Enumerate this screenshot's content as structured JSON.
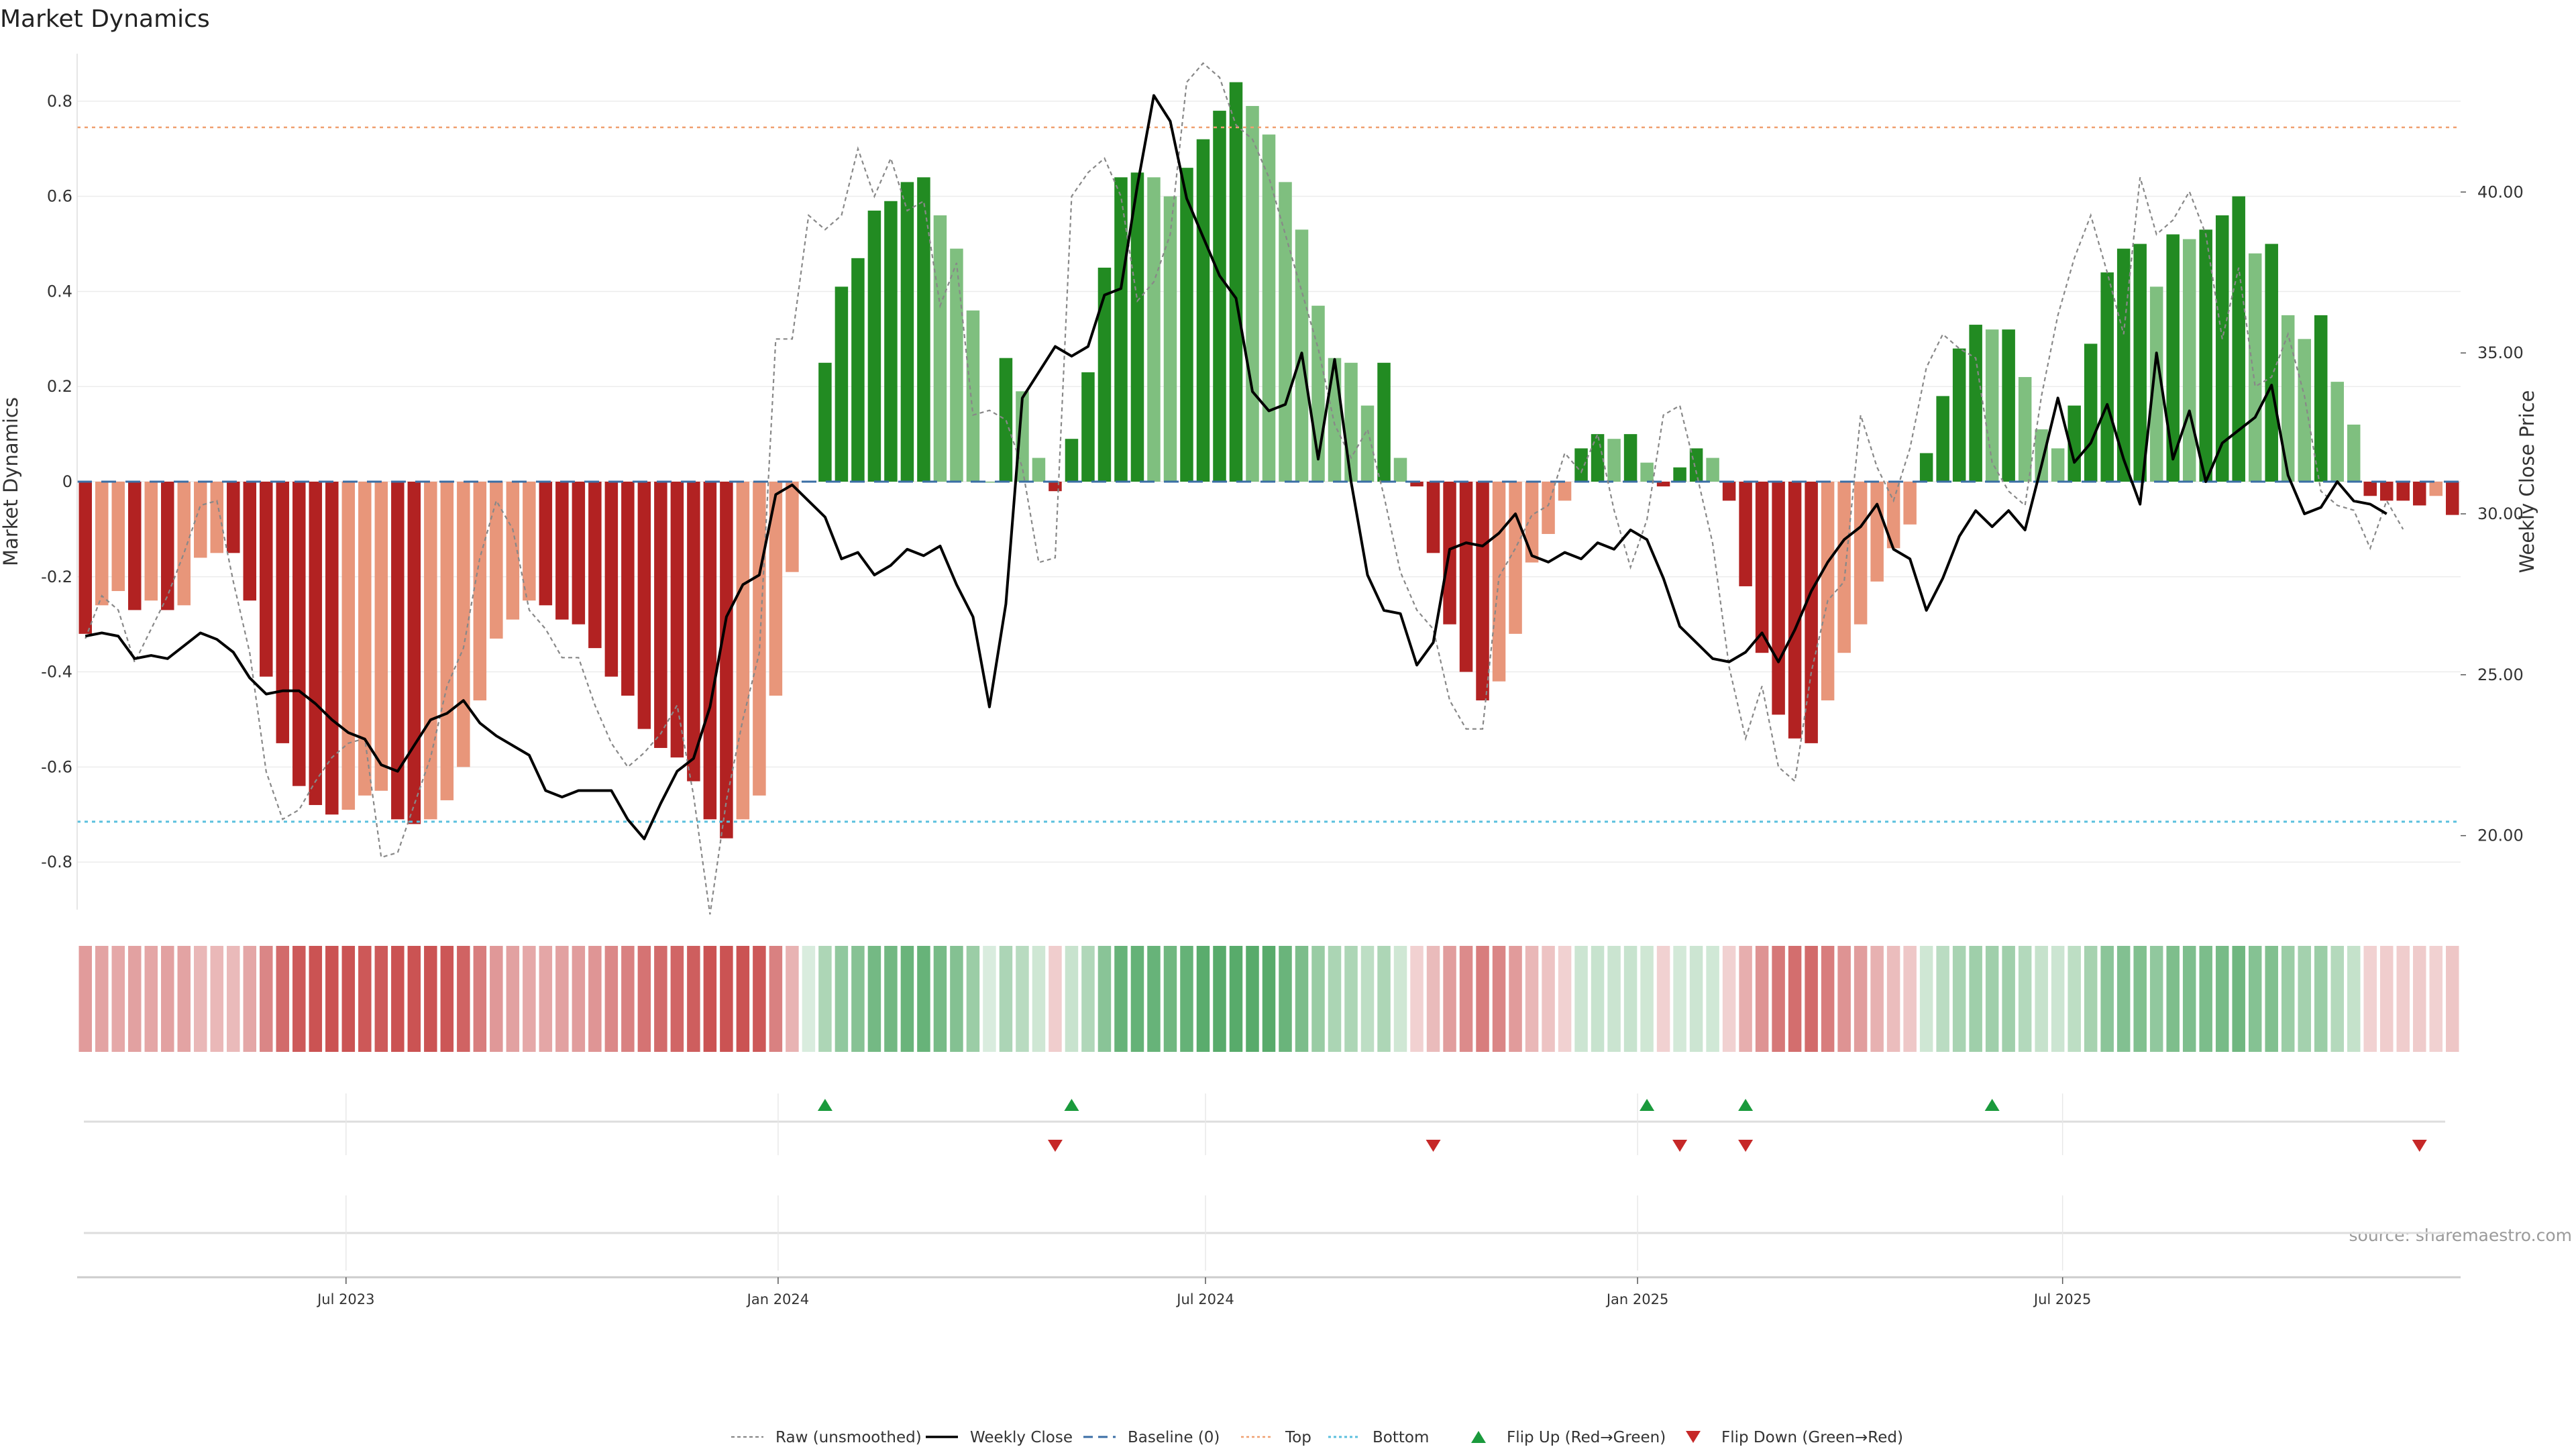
{
  "title": "Market Dynamics",
  "source": "source: sharemaestro.com",
  "colors": {
    "strong_green": "#228b22",
    "light_green": "#7fbf7f",
    "strong_red": "#b22222",
    "light_red": "#e8967a",
    "raw": "#888888",
    "close": "#000000",
    "baseline": "#3a6ea5",
    "top": "#f0a070",
    "bottom": "#5bc0de",
    "flip_up": "#1a9a3c",
    "flip_down": "#c62828"
  },
  "chart_data": {
    "type": "bar",
    "x_start": "2023-03-12",
    "x_step_days": 7,
    "x_tick_labels": [
      "Jul 2023",
      "Jan 2024",
      "Jul 2024",
      "Jan 2025",
      "Jul 2025"
    ],
    "x_tick_dates": [
      "2023-07-01",
      "2024-01-01",
      "2024-07-01",
      "2025-01-01",
      "2025-07-01"
    ],
    "ylabel": "Market Dynamics",
    "ylim": [
      -0.9,
      0.9
    ],
    "yticks": [
      -0.8,
      -0.6,
      -0.4,
      -0.2,
      0,
      0.2,
      0.4,
      0.6,
      0.8
    ],
    "y2label": "Weekly Close Price",
    "y2lim": [
      17.7,
      44.3
    ],
    "y2ticks": [
      20.0,
      25.0,
      30.0,
      35.0,
      40.0
    ],
    "top_threshold": 0.745,
    "bottom_threshold": -0.715,
    "series": [
      {
        "name": "Market Dynamics",
        "values": [
          -0.32,
          -0.26,
          -0.23,
          -0.27,
          -0.25,
          -0.27,
          -0.26,
          -0.16,
          -0.15,
          -0.15,
          -0.25,
          -0.41,
          -0.55,
          -0.64,
          -0.68,
          -0.7,
          -0.69,
          -0.66,
          -0.65,
          -0.71,
          -0.72,
          -0.71,
          -0.67,
          -0.6,
          -0.46,
          -0.33,
          -0.29,
          -0.25,
          -0.26,
          -0.29,
          -0.3,
          -0.35,
          -0.41,
          -0.45,
          -0.52,
          -0.56,
          -0.58,
          -0.63,
          -0.71,
          -0.75,
          -0.71,
          -0.66,
          -0.45,
          -0.19,
          0,
          0.25,
          0.41,
          0.47,
          0.57,
          0.59,
          0.63,
          0.64,
          0.56,
          0.49,
          0.36,
          0,
          0.26,
          0.19,
          0.05,
          -0.02,
          0.09,
          0.23,
          0.45,
          0.64,
          0.65,
          0.64,
          0.6,
          0.66,
          0.72,
          0.78,
          0.84,
          0.79,
          0.73,
          0.63,
          0.53,
          0.37,
          0.26,
          0.25,
          0.16,
          0.25,
          0.05,
          -0.01,
          -0.15,
          -0.3,
          -0.4,
          -0.46,
          -0.42,
          -0.32,
          -0.17,
          -0.11,
          -0.04,
          0.07,
          0.1,
          0.09,
          0.1,
          0.04,
          -0.01,
          0.03,
          0.07,
          0.05,
          -0.04,
          -0.22,
          -0.36,
          -0.49,
          -0.54,
          -0.55,
          -0.46,
          -0.36,
          -0.3,
          -0.21,
          -0.14,
          -0.09,
          0.06,
          0.18,
          0.28,
          0.33,
          0.32,
          0.32,
          0.22,
          0.11,
          0.07,
          0.16,
          0.29,
          0.44,
          0.49,
          0.5,
          0.41,
          0.52,
          0.51,
          0.53,
          0.56,
          0.6,
          0.48,
          0.5,
          0.35,
          0.3,
          0.35,
          0.21,
          0.12,
          -0.03,
          -0.04,
          -0.04,
          -0.05,
          -0.03,
          -0.07
        ]
      },
      {
        "name": "Raw (unsmoothed)",
        "values": [
          -0.33,
          -0.24,
          -0.27,
          -0.38,
          -0.31,
          -0.24,
          -0.15,
          -0.05,
          -0.04,
          -0.21,
          -0.36,
          -0.61,
          -0.71,
          -0.69,
          -0.63,
          -0.58,
          -0.55,
          -0.54,
          -0.79,
          -0.78,
          -0.68,
          -0.58,
          -0.43,
          -0.35,
          -0.16,
          -0.04,
          -0.1,
          -0.27,
          -0.31,
          -0.37,
          -0.37,
          -0.47,
          -0.55,
          -0.6,
          -0.57,
          -0.53,
          -0.47,
          -0.66,
          -0.91,
          -0.67,
          -0.5,
          -0.36,
          0.3,
          0.3,
          0.56,
          0.53,
          0.56,
          0.7,
          0.6,
          0.68,
          0.57,
          0.59,
          0.37,
          0.46,
          0.14,
          0.15,
          0.13,
          0.03,
          -0.17,
          -0.16,
          0.6,
          0.65,
          0.68,
          0.6,
          0.38,
          0.42,
          0.52,
          0.84,
          0.88,
          0.85,
          0.75,
          0.72,
          0.64,
          0.52,
          0.4,
          0.28,
          0.12,
          0.05,
          0.11,
          -0.03,
          -0.19,
          -0.27,
          -0.31,
          -0.46,
          -0.52,
          -0.52,
          -0.2,
          -0.14,
          -0.07,
          -0.05,
          0.06,
          0.02,
          0.1,
          -0.06,
          -0.18,
          -0.08,
          0.14,
          0.16,
          0.02,
          -0.13,
          -0.39,
          -0.54,
          -0.43,
          -0.6,
          -0.63,
          -0.4,
          -0.25,
          -0.21,
          0.14,
          0.03,
          -0.04,
          0.07,
          0.24,
          0.31,
          0.28,
          0.26,
          0.04,
          -0.02,
          -0.05,
          0.18,
          0.35,
          0.47,
          0.56,
          0.44,
          0.31,
          0.64,
          0.52,
          0.55,
          0.61,
          0.52,
          0.3,
          0.45,
          0.2,
          0.22,
          0.31,
          0.18,
          -0.02,
          -0.05,
          -0.06,
          -0.14,
          -0.04,
          -0.1
        ]
      },
      {
        "name": "Weekly Close",
        "values": [
          26.2,
          26.3,
          26.2,
          25.5,
          25.6,
          25.5,
          25.9,
          26.3,
          26.1,
          25.7,
          24.9,
          24.4,
          24.5,
          24.5,
          24.1,
          23.6,
          23.2,
          23.0,
          22.2,
          22.0,
          22.8,
          23.6,
          23.8,
          24.2,
          23.5,
          23.1,
          22.8,
          22.5,
          21.4,
          21.2,
          21.4,
          21.4,
          21.4,
          20.5,
          19.9,
          21.0,
          22.0,
          22.4,
          24.0,
          26.8,
          27.8,
          28.1,
          30.6,
          30.9,
          30.4,
          29.9,
          28.6,
          28.8,
          28.1,
          28.4,
          28.9,
          28.7,
          29.0,
          27.8,
          26.8,
          24.0,
          27.2,
          33.6,
          34.4,
          35.2,
          34.9,
          35.2,
          36.8,
          37.0,
          40.2,
          43.0,
          42.2,
          39.8,
          38.6,
          37.4,
          36.7,
          33.8,
          33.2,
          33.4,
          35.0,
          31.7,
          34.8,
          31.0,
          28.1,
          27.0,
          26.9,
          25.3,
          26.0,
          28.9,
          29.1,
          29.0,
          29.4,
          30.0,
          28.7,
          28.5,
          28.8,
          28.6,
          29.1,
          28.9,
          29.5,
          29.2,
          28.0,
          26.5,
          26.0,
          25.5,
          25.4,
          25.7,
          26.3,
          25.4,
          26.4,
          27.6,
          28.5,
          29.2,
          29.6,
          30.3,
          28.9,
          28.6,
          27.0,
          28.0,
          29.3,
          30.1,
          29.6,
          30.1,
          29.5,
          31.5,
          33.6,
          31.6,
          32.2,
          33.4,
          31.7,
          30.3,
          35.0,
          31.7,
          33.2,
          31.0,
          32.2,
          32.6,
          33.0,
          34.0,
          31.2,
          30.0,
          30.2,
          31.0,
          30.4,
          30.3,
          30.0
        ]
      }
    ],
    "regime_strip": [
      0.46,
      0.4,
      0.36,
      0.42,
      0.38,
      0.42,
      0.4,
      0.25,
      0.24,
      0.23,
      0.38,
      0.62,
      0.82,
      0.95,
      1.0,
      1.0,
      1.0,
      0.96,
      0.95,
      1.0,
      1.0,
      1.0,
      0.98,
      0.88,
      0.68,
      0.48,
      0.42,
      0.36,
      0.38,
      0.42,
      0.44,
      0.51,
      0.6,
      0.66,
      0.76,
      0.82,
      0.86,
      0.92,
      1.0,
      1.0,
      1.0,
      0.96,
      0.65,
      0.28,
      0.0,
      0.34,
      0.56,
      0.64,
      0.78,
      0.8,
      0.86,
      0.88,
      0.76,
      0.66,
      0.48,
      0.0,
      0.35,
      0.26,
      0.08,
      0.08,
      0.13,
      0.32,
      0.62,
      0.88,
      0.9,
      0.88,
      0.82,
      0.9,
      0.98,
      1.0,
      1.0,
      1.0,
      1.0,
      0.86,
      0.72,
      0.5,
      0.36,
      0.34,
      0.22,
      0.34,
      0.08,
      0.06,
      0.22,
      0.44,
      0.58,
      0.68,
      0.62,
      0.46,
      0.25,
      0.16,
      0.06,
      0.1,
      0.14,
      0.12,
      0.14,
      0.08,
      0.06,
      0.05,
      0.1,
      0.07,
      0.06,
      0.32,
      0.52,
      0.72,
      0.8,
      0.82,
      0.68,
      0.52,
      0.44,
      0.3,
      0.2,
      0.13,
      0.08,
      0.24,
      0.38,
      0.45,
      0.44,
      0.44,
      0.3,
      0.15,
      0.1,
      0.22,
      0.4,
      0.6,
      0.67,
      0.68,
      0.56,
      0.71,
      0.7,
      0.72,
      0.76,
      0.82,
      0.65,
      0.68,
      0.48,
      0.41,
      0.48,
      0.29,
      0.16,
      0.06,
      0.08,
      0.08,
      0.1,
      0.06,
      0.14
    ],
    "flip_up_indices": [
      45,
      60,
      95,
      101,
      116
    ],
    "flip_down_indices": [
      59,
      82,
      97,
      101,
      142
    ]
  },
  "legend": {
    "raw": "Raw (unsmoothed)",
    "close": "Weekly Close",
    "baseline": "Baseline (0)",
    "top": "Top",
    "bottom": "Bottom",
    "flip_up": "Flip Up (Red→Green)",
    "flip_down": "Flip Down (Green→Red)"
  }
}
